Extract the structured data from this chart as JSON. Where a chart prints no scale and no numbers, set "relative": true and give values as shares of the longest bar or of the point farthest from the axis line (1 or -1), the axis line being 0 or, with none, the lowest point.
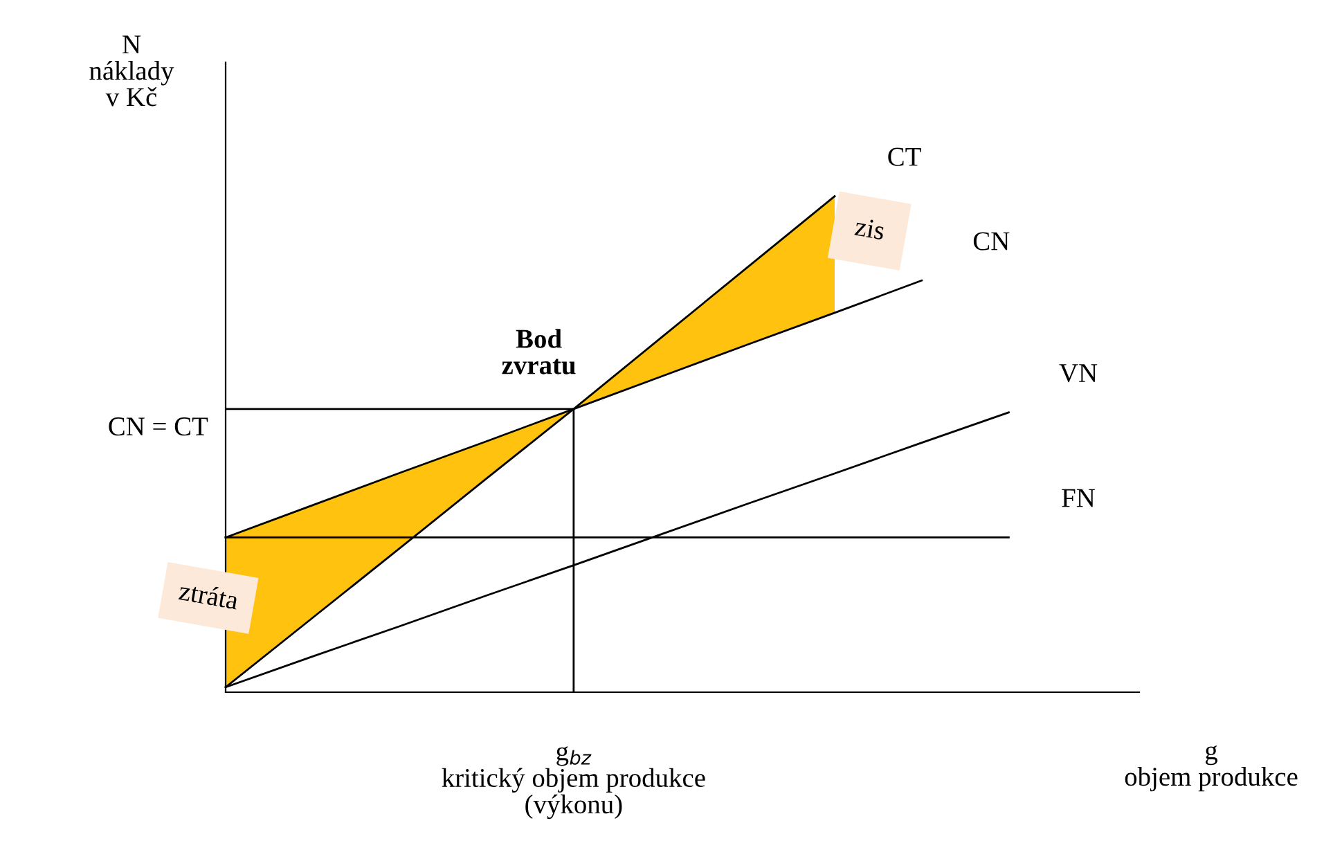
{
  "chart_data": {
    "type": "line",
    "relative": true,
    "ylabel": "N\nnáklady\nv Kč",
    "xlabel": "g\nobjem produkce",
    "categories": [
      null,
      null,
      null,
      null,
      null,
      null,
      null,
      null,
      null,
      null
    ],
    "series": [
      {
        "name": "CT",
        "color": "#000000",
        "values": [
          0.01,
          0.15,
          0.29,
          0.431,
          0.571,
          0.714,
          0.857,
          1,
          null,
          null
        ]
      },
      {
        "name": "CN",
        "color": "#000000",
        "values": [
          0.312,
          0.377,
          0.442,
          0.506,
          0.571,
          0.636,
          0.701,
          0.765,
          0.83,
          null
        ]
      },
      {
        "name": "VN",
        "color": "#000000",
        "values": [
          0.01,
          0.072,
          0.133,
          0.195,
          0.256,
          0.318,
          0.38,
          0.441,
          0.503,
          0.564
        ]
      },
      {
        "name": "FN",
        "color": "#000000",
        "values": [
          0.312,
          0.312,
          0.312,
          0.312,
          0.312,
          0.312,
          0.312,
          0.312,
          0.312,
          0.312
        ]
      }
    ],
    "ref_lines": [
      {
        "axis": "y",
        "value": 0.571,
        "label": "CN = CT"
      }
    ],
    "annotations": [
      "Bod\nzvratu",
      "g$_{bz}$\nkritický objem produkce\n(výkonu)",
      "ztráta",
      "zis"
    ],
    "grid": false,
    "legend": false,
    "marker": "none",
    "line_style": "solid"
  }
}
